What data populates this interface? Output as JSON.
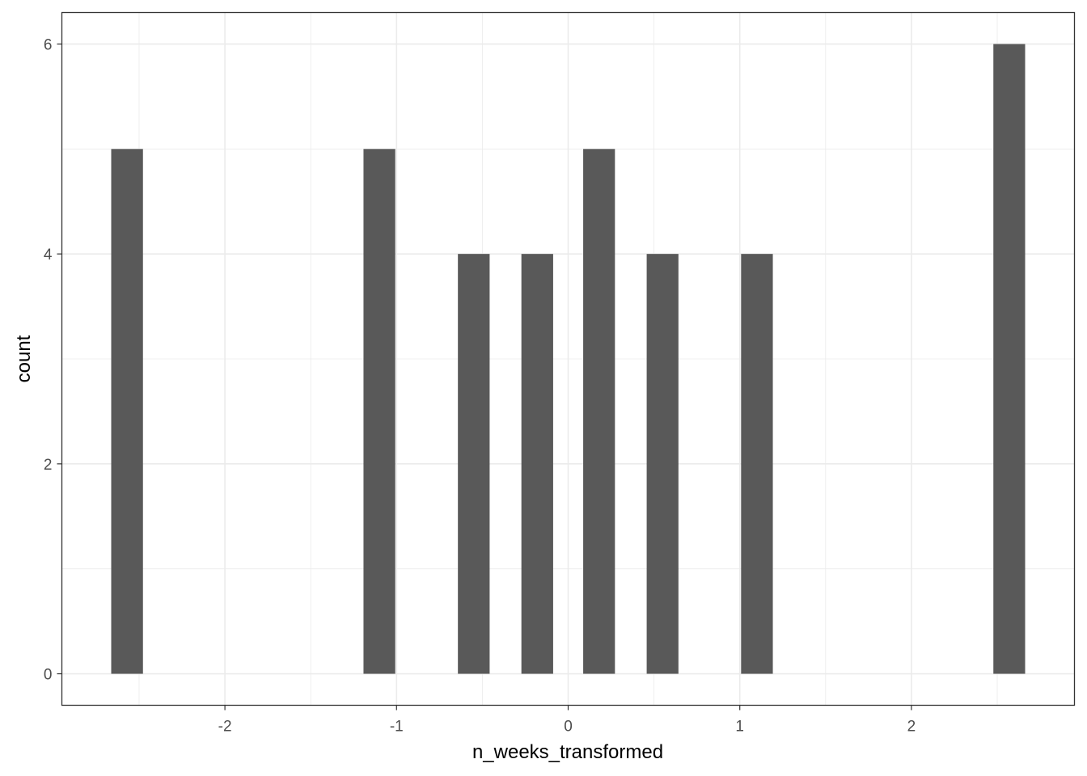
{
  "chart_data": {
    "type": "bar",
    "title": "",
    "xlabel": "n_weeks_transformed",
    "ylabel": "count",
    "xlim": [
      -2.95,
      2.95
    ],
    "ylim": [
      -0.3,
      6.3
    ],
    "grid": true,
    "bin_width": 0.185,
    "x_ticks": [
      -2,
      -1,
      0,
      1,
      2
    ],
    "x_tick_labels": [
      "-2",
      "-1",
      "0",
      "1",
      "2"
    ],
    "y_ticks": [
      0,
      2,
      4,
      6
    ],
    "y_tick_labels": [
      "0",
      "2",
      "4",
      "6"
    ],
    "bars": [
      {
        "x": -2.57,
        "count": 5
      },
      {
        "x": -1.1,
        "count": 5
      },
      {
        "x": -0.55,
        "count": 4
      },
      {
        "x": -0.18,
        "count": 4
      },
      {
        "x": 0.18,
        "count": 5
      },
      {
        "x": 0.55,
        "count": 4
      },
      {
        "x": 1.1,
        "count": 4
      },
      {
        "x": 2.57,
        "count": 6
      }
    ],
    "colors": {
      "bar": "#595959",
      "grid": "#ebebeb",
      "panel_border": "#333333",
      "tick_label": "#4d4d4d"
    }
  }
}
